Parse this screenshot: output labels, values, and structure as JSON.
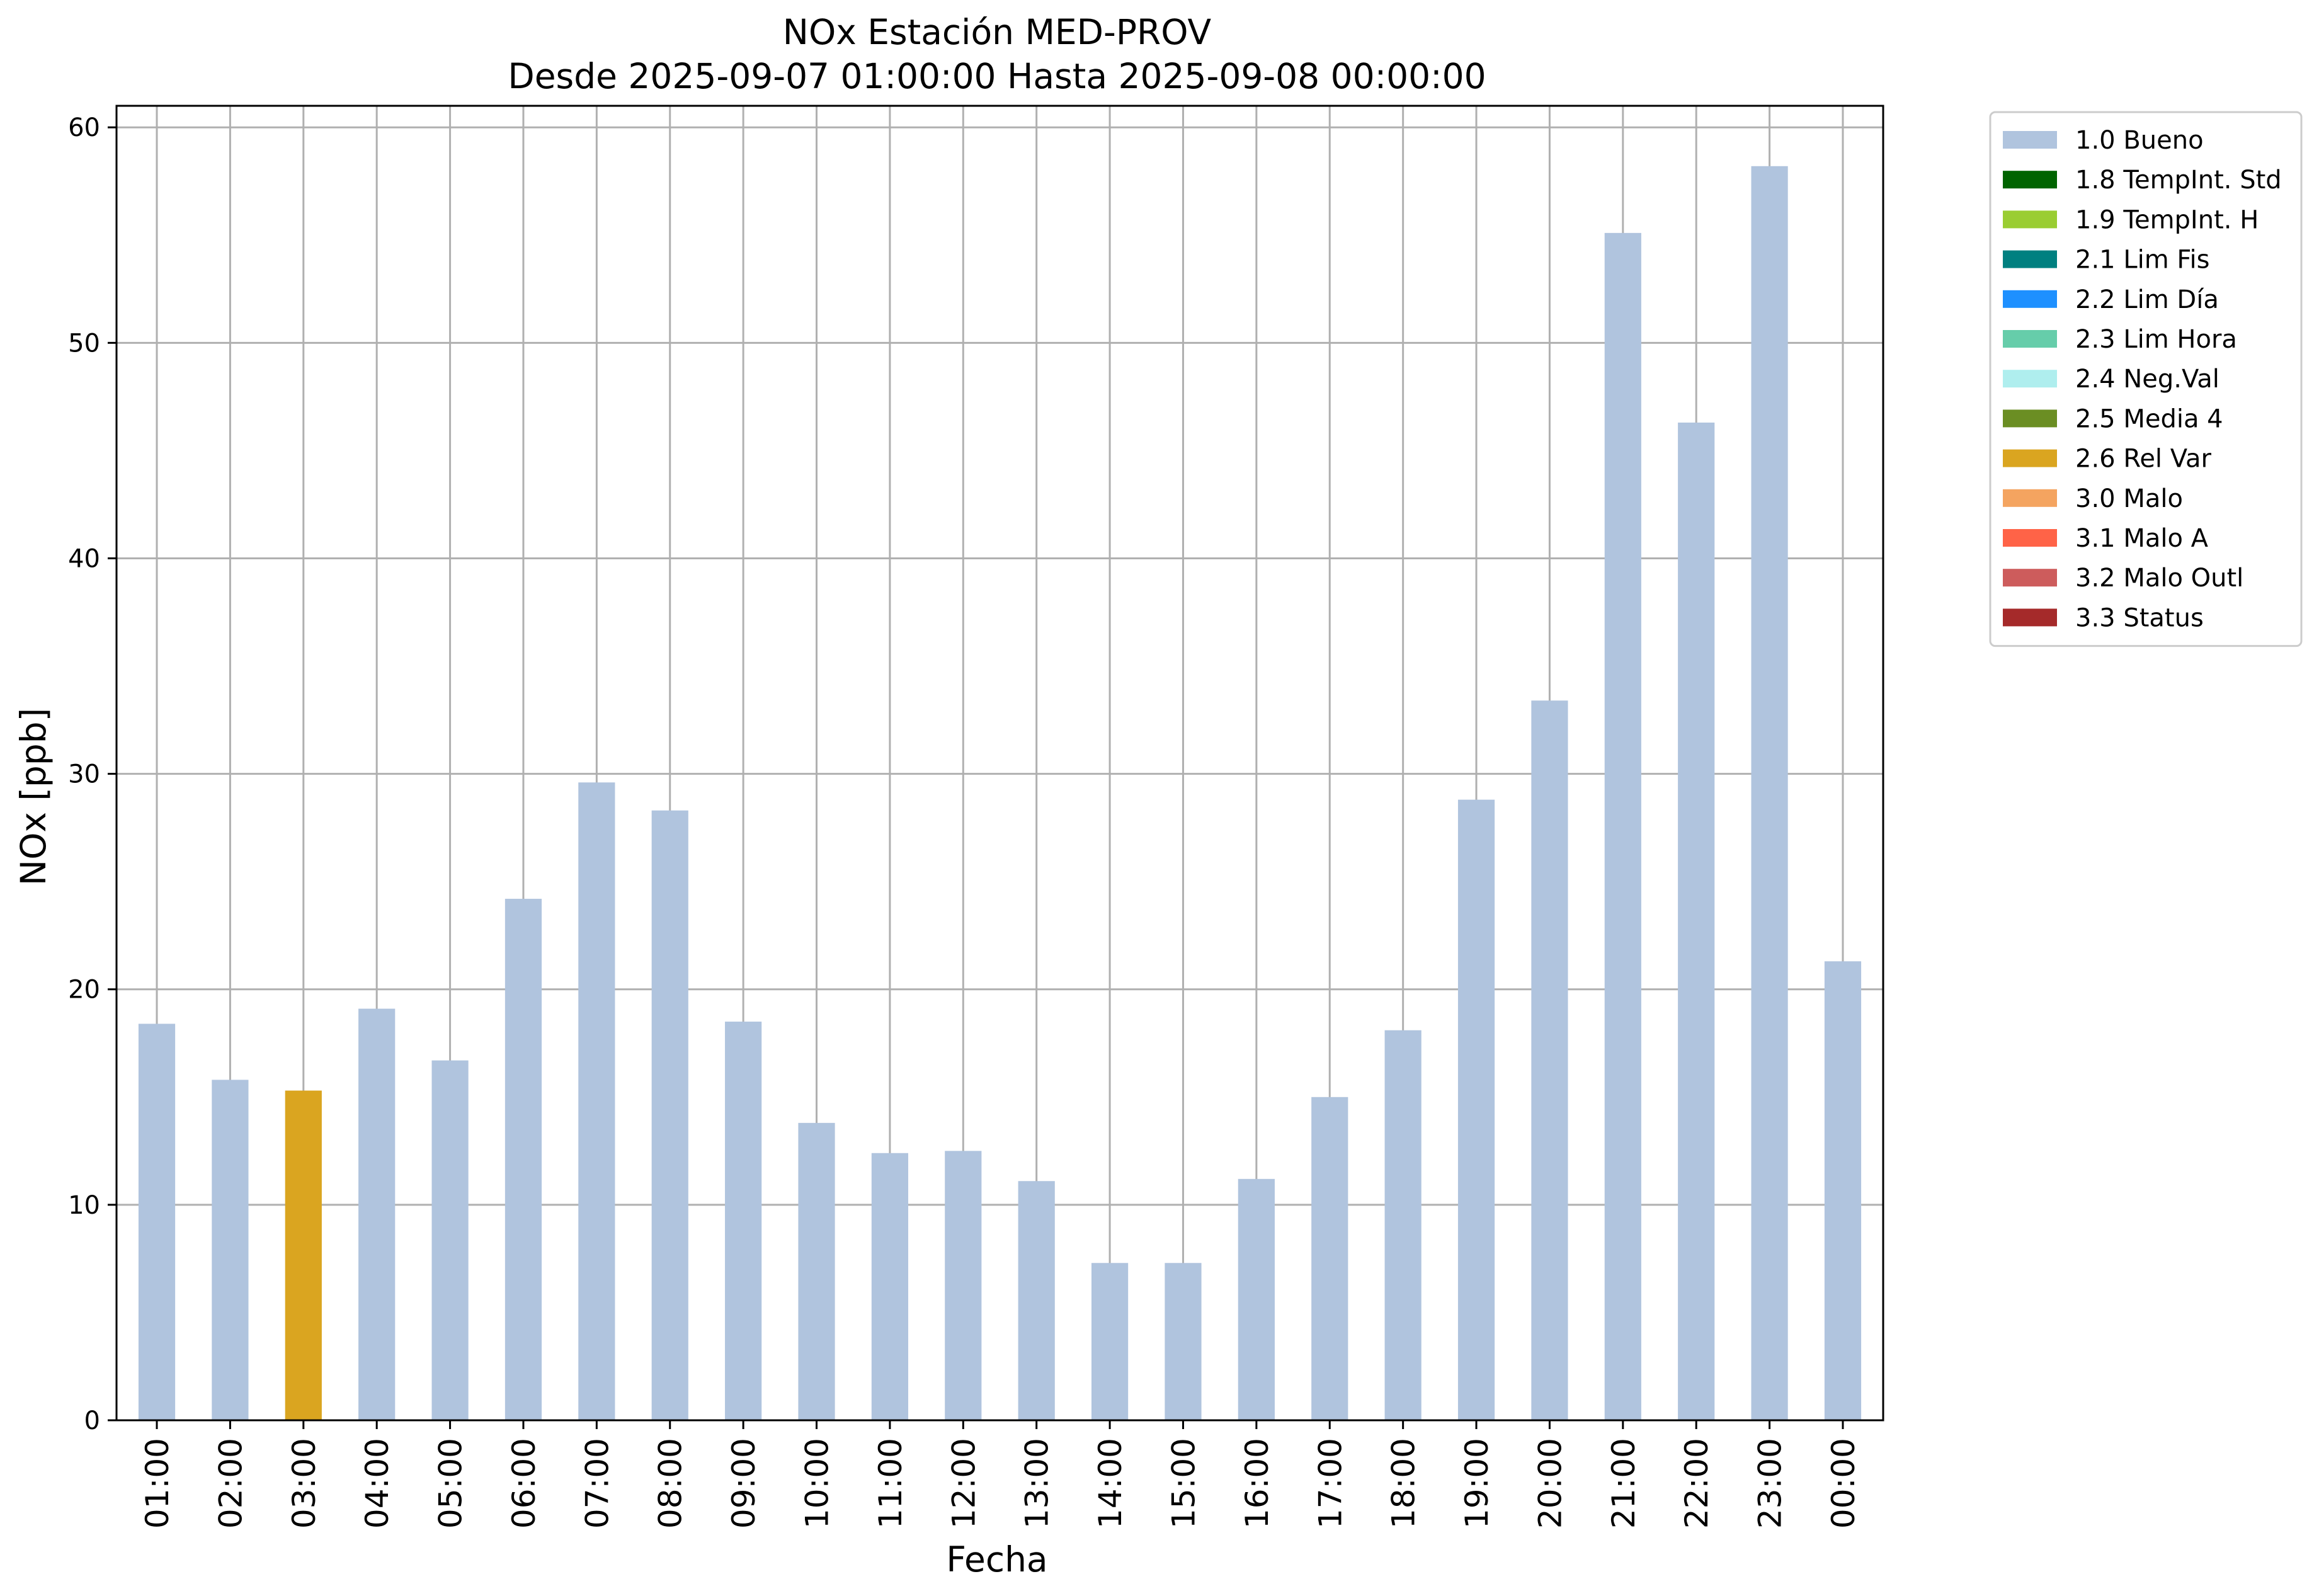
{
  "chart_data": {
    "type": "bar",
    "title": "NOx Estación MED-PROV",
    "subtitle": "Desde 2025-09-07 01:00:00 Hasta 2025-09-08 00:00:00",
    "xlabel": "Fecha",
    "ylabel": "NOx [ppb]",
    "ylim": [
      0,
      61
    ],
    "yticks": [
      0,
      10,
      20,
      30,
      40,
      50,
      60
    ],
    "grid": true,
    "legend_position": "outside-top-right",
    "categories": [
      "01:00",
      "02:00",
      "03:00",
      "04:00",
      "05:00",
      "06:00",
      "07:00",
      "08:00",
      "09:00",
      "10:00",
      "11:00",
      "12:00",
      "13:00",
      "14:00",
      "15:00",
      "16:00",
      "17:00",
      "18:00",
      "19:00",
      "20:00",
      "21:00",
      "22:00",
      "23:00",
      "00:00"
    ],
    "values": [
      18.4,
      15.8,
      15.3,
      19.1,
      16.7,
      24.2,
      29.6,
      28.3,
      18.5,
      13.8,
      12.4,
      12.5,
      11.1,
      7.3,
      7.3,
      11.2,
      15.0,
      18.1,
      28.8,
      33.4,
      55.1,
      46.3,
      58.2,
      21.3
    ],
    "flags": [
      "1.0 Bueno",
      "1.0 Bueno",
      "2.6 Rel Var",
      "1.0 Bueno",
      "1.0 Bueno",
      "1.0 Bueno",
      "1.0 Bueno",
      "1.0 Bueno",
      "1.0 Bueno",
      "1.0 Bueno",
      "1.0 Bueno",
      "1.0 Bueno",
      "1.0 Bueno",
      "1.0 Bueno",
      "1.0 Bueno",
      "1.0 Bueno",
      "1.0 Bueno",
      "1.0 Bueno",
      "1.0 Bueno",
      "1.0 Bueno",
      "1.0 Bueno",
      "1.0 Bueno",
      "1.0 Bueno",
      "1.0 Bueno"
    ],
    "legend": [
      {
        "label": "1.0 Bueno",
        "color": "#b0c4de"
      },
      {
        "label": "1.8 TempInt. Std",
        "color": "#006400"
      },
      {
        "label": "1.9 TempInt. H",
        "color": "#9acd32"
      },
      {
        "label": "2.1 Lim Fis",
        "color": "#008080"
      },
      {
        "label": "2.2 Lim Día",
        "color": "#1e90ff"
      },
      {
        "label": "2.3 Lim Hora",
        "color": "#66cdaa"
      },
      {
        "label": "2.4 Neg.Val",
        "color": "#afeeee"
      },
      {
        "label": "2.5 Media 4",
        "color": "#6b8e23"
      },
      {
        "label": "2.6 Rel Var",
        "color": "#daa520"
      },
      {
        "label": "3.0 Malo",
        "color": "#f4a460"
      },
      {
        "label": "3.1 Malo A",
        "color": "#ff6347"
      },
      {
        "label": "3.2 Malo Outl",
        "color": "#cd5c5c"
      },
      {
        "label": "3.3 Status",
        "color": "#a52a2a"
      }
    ]
  }
}
